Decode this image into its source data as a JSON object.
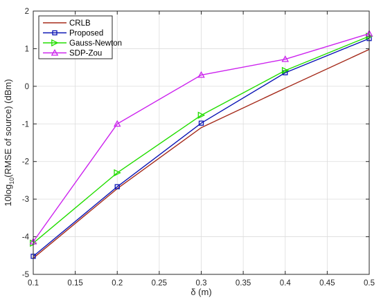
{
  "chart_data": {
    "type": "line",
    "title": "",
    "xlabel": "δ (m)",
    "ylabel": {
      "prefix": "10log",
      "subscript": "10",
      "suffix": "(RMSE of source) (dBm)"
    },
    "xlim": [
      0.1,
      0.5
    ],
    "ylim": [
      -5,
      2
    ],
    "xticks": [
      "0.1",
      "0.15",
      "0.2",
      "0.25",
      "0.3",
      "0.35",
      "0.4",
      "0.45",
      "0.5"
    ],
    "yticks": [
      "-5",
      "-4",
      "-3",
      "-2",
      "-1",
      "0",
      "1",
      "2"
    ],
    "grid": true,
    "legend_position": "top-left",
    "x": [
      0.1,
      0.2,
      0.3,
      0.4,
      0.5
    ],
    "series": [
      {
        "name": "CRLB",
        "color": "#a52a1a",
        "marker": "none",
        "values": [
          -4.57,
          -2.72,
          -1.1,
          -0.05,
          0.98
        ]
      },
      {
        "name": "Proposed",
        "color": "#0a14b4",
        "marker": "square",
        "values": [
          -4.52,
          -2.67,
          -0.98,
          0.36,
          1.27
        ]
      },
      {
        "name": "Gauss-Newton",
        "color": "#22dd00",
        "marker": "triangle-right",
        "values": [
          -4.17,
          -2.3,
          -0.77,
          0.42,
          1.33
        ]
      },
      {
        "name": "SDP-Zou",
        "color": "#cc22ee",
        "marker": "triangle-up",
        "values": [
          -4.13,
          -1.0,
          0.3,
          0.72,
          1.4
        ]
      }
    ]
  }
}
